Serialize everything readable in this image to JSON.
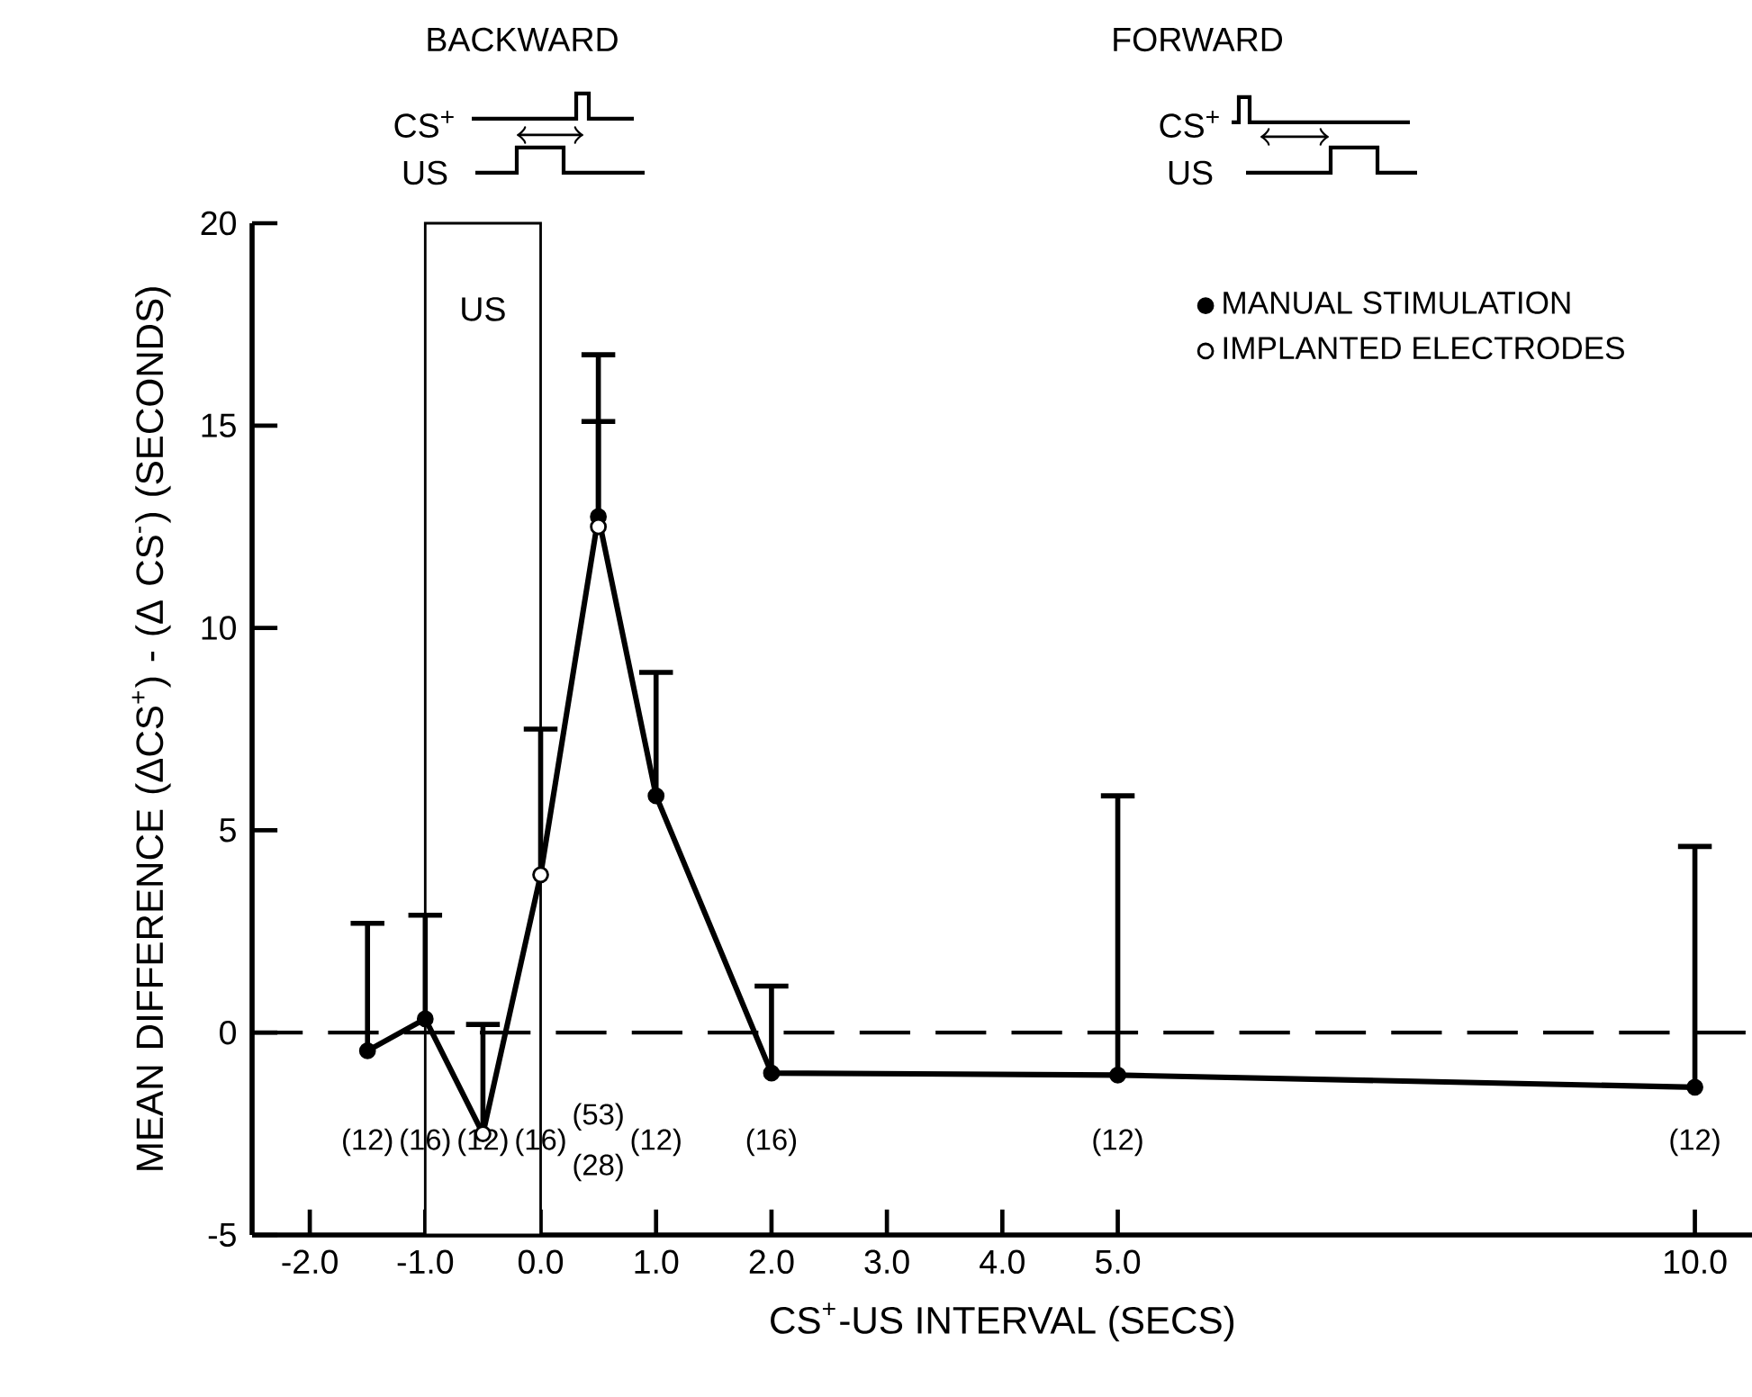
{
  "chart_data": {
    "type": "line",
    "xlabel": "CS$^{+}$-US INTERVAL (SECS)",
    "ylabel": "MEAN DIFFERENCE (ΔCS$^{+}$) - (Δ CS$^{-}$) (SECONDS)",
    "xlim": [
      -2.5,
      10.5
    ],
    "xticks": [
      {
        "value": -2,
        "label": "-2.0"
      },
      {
        "value": -1,
        "label": "-1.0"
      },
      {
        "value": 0,
        "label": "0.0"
      },
      {
        "value": 1,
        "label": "1.0"
      },
      {
        "value": 2,
        "label": "2.0"
      },
      {
        "value": 3,
        "label": "3.0"
      },
      {
        "value": 4,
        "label": "4.0"
      },
      {
        "value": 5,
        "label": "5.0"
      },
      {
        "value": 10,
        "label": "10.0"
      }
    ],
    "ylim": [
      -5,
      20
    ],
    "yticks": [
      -5,
      0,
      5,
      10,
      15,
      20
    ],
    "legend": "top right",
    "series": [
      {
        "color": "#000000",
        "marker": "none",
        "line_style": "solid",
        "x": [
          -1.5,
          -1,
          -0.5,
          0,
          0.5,
          1,
          2,
          5,
          10
        ],
        "values": [
          -0.45,
          0.34,
          -2.5,
          3.9,
          12.75,
          5.85,
          -1.0,
          -1.05,
          -1.35
        ]
      },
      {
        "type": "scatter",
        "name": "MANUAL STIMULATION",
        "color": "#000000",
        "marker": "circle",
        "x": [
          -1.5,
          -1,
          0.5,
          1,
          2,
          5,
          10
        ],
        "values": [
          -0.45,
          0.34,
          12.75,
          5.85,
          -1.0,
          -1.05,
          -1.35
        ],
        "errors": [
          [
            -0.45,
            2.7
          ],
          [
            0.34,
            2.9
          ],
          [
            12.75,
            15.1
          ],
          [
            5.85,
            8.9
          ],
          [
            -1.0,
            1.15
          ],
          [
            -1.05,
            5.85
          ],
          [
            -1.35,
            4.6
          ]
        ]
      },
      {
        "type": "scatter",
        "name": "IMPLANTED ELECTRODES",
        "color": "#ffffff",
        "marker": "circle",
        "x": [
          -0.5,
          0,
          0.5
        ],
        "values": [
          -2.5,
          3.9,
          12.5
        ],
        "errors": [
          [
            -2.5,
            0.2
          ],
          [
            3.9,
            7.5
          ],
          [
            12.5,
            16.75
          ]
        ]
      }
    ],
    "ref_lines": [
      {
        "axis": "y",
        "value": 0,
        "line_style": "dashed"
      }
    ],
    "bands": [
      {
        "axis": "x",
        "from": -1,
        "to": 0,
        "label": "US"
      }
    ],
    "annotations": [
      "BACKWARD",
      "CS$^{+}$",
      "US",
      "FORWARD",
      "CS$^{+}$",
      "US",
      "(12)",
      "(16)",
      "(12)",
      "(16)",
      "(53)",
      "(28)",
      "(12)",
      "(16)",
      "(12)",
      "(12)"
    ]
  }
}
